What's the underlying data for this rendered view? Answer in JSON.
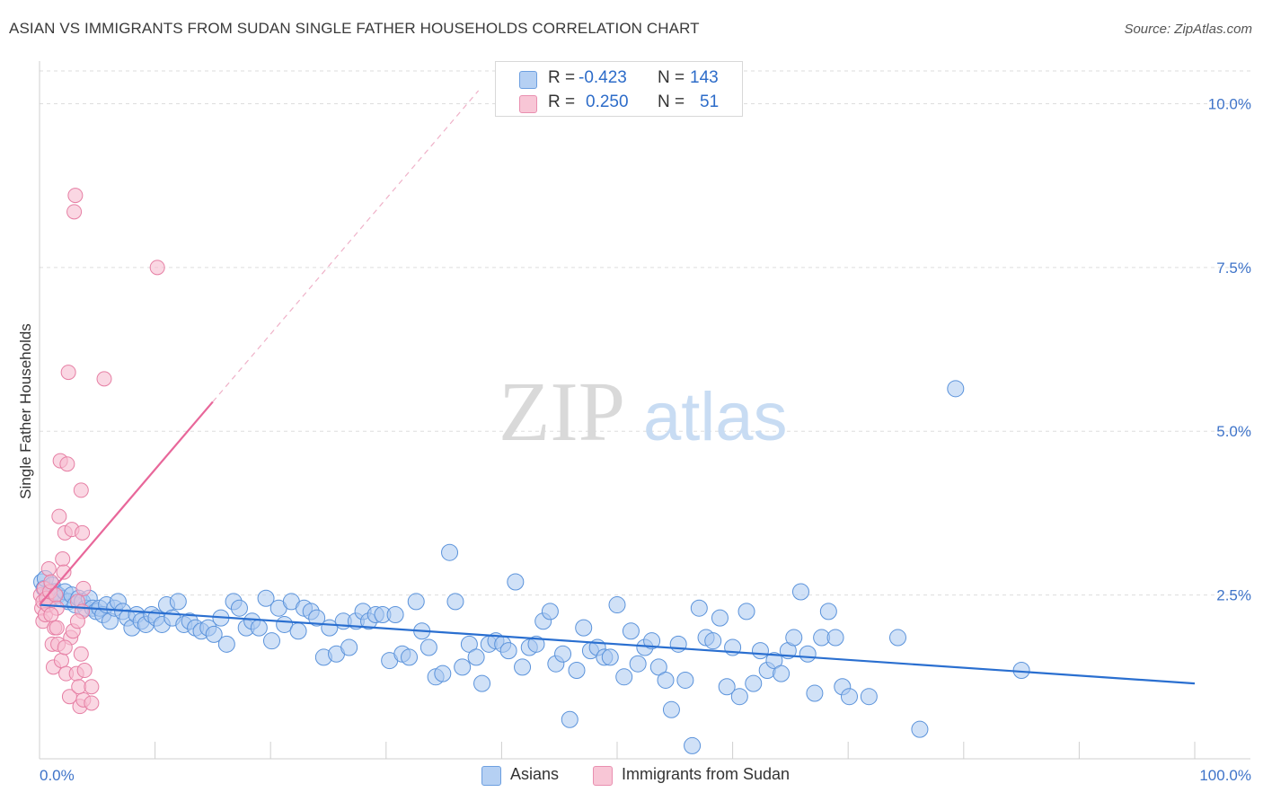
{
  "header": {
    "title": "ASIAN VS IMMIGRANTS FROM SUDAN SINGLE FATHER HOUSEHOLDS CORRELATION CHART",
    "source": "Source: ZipAtlas.com"
  },
  "watermark": {
    "zip": "ZIP",
    "atlas": "atlas"
  },
  "legend": {
    "rows": [
      {
        "r_label": "R =",
        "r_value": "-0.423",
        "n_label": "N =",
        "n_value": "143"
      },
      {
        "r_label": "R =",
        "r_value": "0.250",
        "n_label": "N =",
        "n_value": "51"
      }
    ]
  },
  "bottom_legend": {
    "asians": "Asians",
    "sudan": "Immigrants from Sudan"
  },
  "colors": {
    "asian_fill": "#a9c8f0",
    "asian_stroke": "#5b93db",
    "asian_line": "#2a6fd0",
    "sudan_fill": "#f7bcd0",
    "sudan_stroke": "#e67fa4",
    "sudan_line": "#e8679a",
    "axis_text": "#3f74c9",
    "grid": "#dddddd"
  },
  "chart_data": {
    "type": "scatter",
    "title": "ASIAN VS IMMIGRANTS FROM SUDAN SINGLE FATHER HOUSEHOLDS CORRELATION CHART",
    "xlabel": "",
    "ylabel": "Single Father Households",
    "xlim": [
      0,
      100
    ],
    "ylim": [
      0,
      10.5
    ],
    "x_tick_labels": [
      "0.0%",
      "100.0%"
    ],
    "y_ticks": [
      2.5,
      5.0,
      7.5,
      10.0
    ],
    "y_tick_labels": [
      "2.5%",
      "5.0%",
      "7.5%",
      "10.0%"
    ],
    "grid": true,
    "series": [
      {
        "name": "Asians",
        "r": -0.423,
        "n": 143,
        "trend": {
          "x": [
            0,
            100
          ],
          "y": [
            2.35,
            1.15
          ]
        },
        "points": [
          [
            0.2,
            2.7
          ],
          [
            0.4,
            2.6
          ],
          [
            0.5,
            2.75
          ],
          [
            0.7,
            2.5
          ],
          [
            0.9,
            2.45
          ],
          [
            1.1,
            2.65
          ],
          [
            1.3,
            2.55
          ],
          [
            1.6,
            2.5
          ],
          [
            1.9,
            2.45
          ],
          [
            2.2,
            2.55
          ],
          [
            2.5,
            2.4
          ],
          [
            2.8,
            2.5
          ],
          [
            3.1,
            2.35
          ],
          [
            3.4,
            2.45
          ],
          [
            3.7,
            2.4
          ],
          [
            4.0,
            2.3
          ],
          [
            4.3,
            2.45
          ],
          [
            4.6,
            2.3
          ],
          [
            4.9,
            2.25
          ],
          [
            5.2,
            2.3
          ],
          [
            5.5,
            2.2
          ],
          [
            5.8,
            2.35
          ],
          [
            6.1,
            2.1
          ],
          [
            6.5,
            2.3
          ],
          [
            6.8,
            2.4
          ],
          [
            7.2,
            2.25
          ],
          [
            7.6,
            2.15
          ],
          [
            8.0,
            2.0
          ],
          [
            8.4,
            2.2
          ],
          [
            8.8,
            2.1
          ],
          [
            9.2,
            2.05
          ],
          [
            9.7,
            2.2
          ],
          [
            10.1,
            2.15
          ],
          [
            10.6,
            2.05
          ],
          [
            11.0,
            2.35
          ],
          [
            11.5,
            2.15
          ],
          [
            12.0,
            2.4
          ],
          [
            12.5,
            2.05
          ],
          [
            13.0,
            2.1
          ],
          [
            13.5,
            2.0
          ],
          [
            14.0,
            1.95
          ],
          [
            14.6,
            2.0
          ],
          [
            15.1,
            1.9
          ],
          [
            15.7,
            2.15
          ],
          [
            16.2,
            1.75
          ],
          [
            16.8,
            2.4
          ],
          [
            17.3,
            2.3
          ],
          [
            17.9,
            2.0
          ],
          [
            18.4,
            2.1
          ],
          [
            19.0,
            2.0
          ],
          [
            19.6,
            2.45
          ],
          [
            20.1,
            1.8
          ],
          [
            20.7,
            2.3
          ],
          [
            21.2,
            2.05
          ],
          [
            21.8,
            2.4
          ],
          [
            22.4,
            1.95
          ],
          [
            22.9,
            2.3
          ],
          [
            23.5,
            2.25
          ],
          [
            24.0,
            2.15
          ],
          [
            24.6,
            1.55
          ],
          [
            25.1,
            2.0
          ],
          [
            25.7,
            1.6
          ],
          [
            26.3,
            2.1
          ],
          [
            26.8,
            1.7
          ],
          [
            27.4,
            2.1
          ],
          [
            28.0,
            2.25
          ],
          [
            28.5,
            2.1
          ],
          [
            29.1,
            2.2
          ],
          [
            29.7,
            2.2
          ],
          [
            30.3,
            1.5
          ],
          [
            30.8,
            2.2
          ],
          [
            31.4,
            1.6
          ],
          [
            32.0,
            1.55
          ],
          [
            32.6,
            2.4
          ],
          [
            33.1,
            1.95
          ],
          [
            33.7,
            1.7
          ],
          [
            34.3,
            1.25
          ],
          [
            34.9,
            1.3
          ],
          [
            35.5,
            3.15
          ],
          [
            36.0,
            2.4
          ],
          [
            36.6,
            1.4
          ],
          [
            37.2,
            1.75
          ],
          [
            37.8,
            1.55
          ],
          [
            38.3,
            1.15
          ],
          [
            38.9,
            1.75
          ],
          [
            39.5,
            1.8
          ],
          [
            40.1,
            1.75
          ],
          [
            40.6,
            1.65
          ],
          [
            41.2,
            2.7
          ],
          [
            41.8,
            1.4
          ],
          [
            42.4,
            1.7
          ],
          [
            43.0,
            1.75
          ],
          [
            43.6,
            2.1
          ],
          [
            44.2,
            2.25
          ],
          [
            44.7,
            1.45
          ],
          [
            45.3,
            1.6
          ],
          [
            45.9,
            0.6
          ],
          [
            46.5,
            1.35
          ],
          [
            47.1,
            2.0
          ],
          [
            47.7,
            1.65
          ],
          [
            48.3,
            1.7
          ],
          [
            48.9,
            1.55
          ],
          [
            49.4,
            1.55
          ],
          [
            50.0,
            2.35
          ],
          [
            50.6,
            1.25
          ],
          [
            51.2,
            1.95
          ],
          [
            51.8,
            1.45
          ],
          [
            52.4,
            1.7
          ],
          [
            53.0,
            1.8
          ],
          [
            53.6,
            1.4
          ],
          [
            54.2,
            1.2
          ],
          [
            54.7,
            0.75
          ],
          [
            55.3,
            1.75
          ],
          [
            55.9,
            1.2
          ],
          [
            56.5,
            0.2
          ],
          [
            57.1,
            2.3
          ],
          [
            57.7,
            1.85
          ],
          [
            58.3,
            1.8
          ],
          [
            58.9,
            2.15
          ],
          [
            59.5,
            1.1
          ],
          [
            60.0,
            1.7
          ],
          [
            60.6,
            0.95
          ],
          [
            61.2,
            2.25
          ],
          [
            61.8,
            1.15
          ],
          [
            62.4,
            1.65
          ],
          [
            63.0,
            1.35
          ],
          [
            63.6,
            1.5
          ],
          [
            64.2,
            1.3
          ],
          [
            64.8,
            1.65
          ],
          [
            65.3,
            1.85
          ],
          [
            65.9,
            2.55
          ],
          [
            66.5,
            1.6
          ],
          [
            67.1,
            1.0
          ],
          [
            67.7,
            1.85
          ],
          [
            68.3,
            2.25
          ],
          [
            68.9,
            1.85
          ],
          [
            69.5,
            1.1
          ],
          [
            70.1,
            0.95
          ],
          [
            71.8,
            0.95
          ],
          [
            74.3,
            1.85
          ],
          [
            76.2,
            0.45
          ],
          [
            79.3,
            5.65
          ],
          [
            85.0,
            1.35
          ]
        ]
      },
      {
        "name": "Immigrants from Sudan",
        "r": 0.25,
        "n": 51,
        "trend": {
          "x": [
            0,
            15
          ],
          "y": [
            2.35,
            5.45
          ]
        },
        "trend_dashed": {
          "x": [
            15,
            38
          ],
          "y": [
            5.45,
            10.2
          ]
        },
        "points": [
          [
            0.1,
            2.5
          ],
          [
            0.2,
            2.3
          ],
          [
            0.3,
            2.4
          ],
          [
            0.3,
            2.1
          ],
          [
            0.4,
            2.6
          ],
          [
            0.5,
            2.2
          ],
          [
            0.6,
            2.45
          ],
          [
            0.7,
            2.35
          ],
          [
            0.8,
            2.9
          ],
          [
            0.9,
            2.55
          ],
          [
            1.0,
            2.7
          ],
          [
            1.1,
            1.75
          ],
          [
            1.2,
            1.4
          ],
          [
            1.3,
            2.0
          ],
          [
            1.4,
            2.5
          ],
          [
            1.5,
            2.3
          ],
          [
            1.6,
            1.75
          ],
          [
            1.7,
            3.7
          ],
          [
            1.8,
            4.55
          ],
          [
            1.9,
            1.5
          ],
          [
            2.0,
            3.05
          ],
          [
            2.1,
            2.85
          ],
          [
            2.2,
            3.45
          ],
          [
            2.3,
            1.3
          ],
          [
            2.4,
            4.5
          ],
          [
            2.5,
            5.9
          ],
          [
            2.6,
            0.95
          ],
          [
            2.7,
            1.85
          ],
          [
            2.8,
            3.5
          ],
          [
            2.9,
            1.95
          ],
          [
            3.0,
            8.35
          ],
          [
            3.1,
            8.6
          ],
          [
            3.2,
            1.3
          ],
          [
            3.3,
            2.4
          ],
          [
            3.5,
            0.8
          ],
          [
            3.6,
            1.6
          ],
          [
            3.8,
            0.9
          ],
          [
            3.7,
            2.25
          ],
          [
            3.8,
            2.6
          ],
          [
            3.9,
            1.35
          ],
          [
            1.0,
            2.2
          ],
          [
            1.5,
            2.0
          ],
          [
            2.2,
            1.7
          ],
          [
            3.4,
            1.1
          ],
          [
            3.6,
            4.1
          ],
          [
            4.5,
            1.1
          ],
          [
            3.7,
            3.45
          ],
          [
            3.3,
            2.1
          ],
          [
            4.5,
            0.85
          ],
          [
            5.6,
            5.8
          ],
          [
            10.2,
            7.5
          ]
        ]
      }
    ]
  }
}
